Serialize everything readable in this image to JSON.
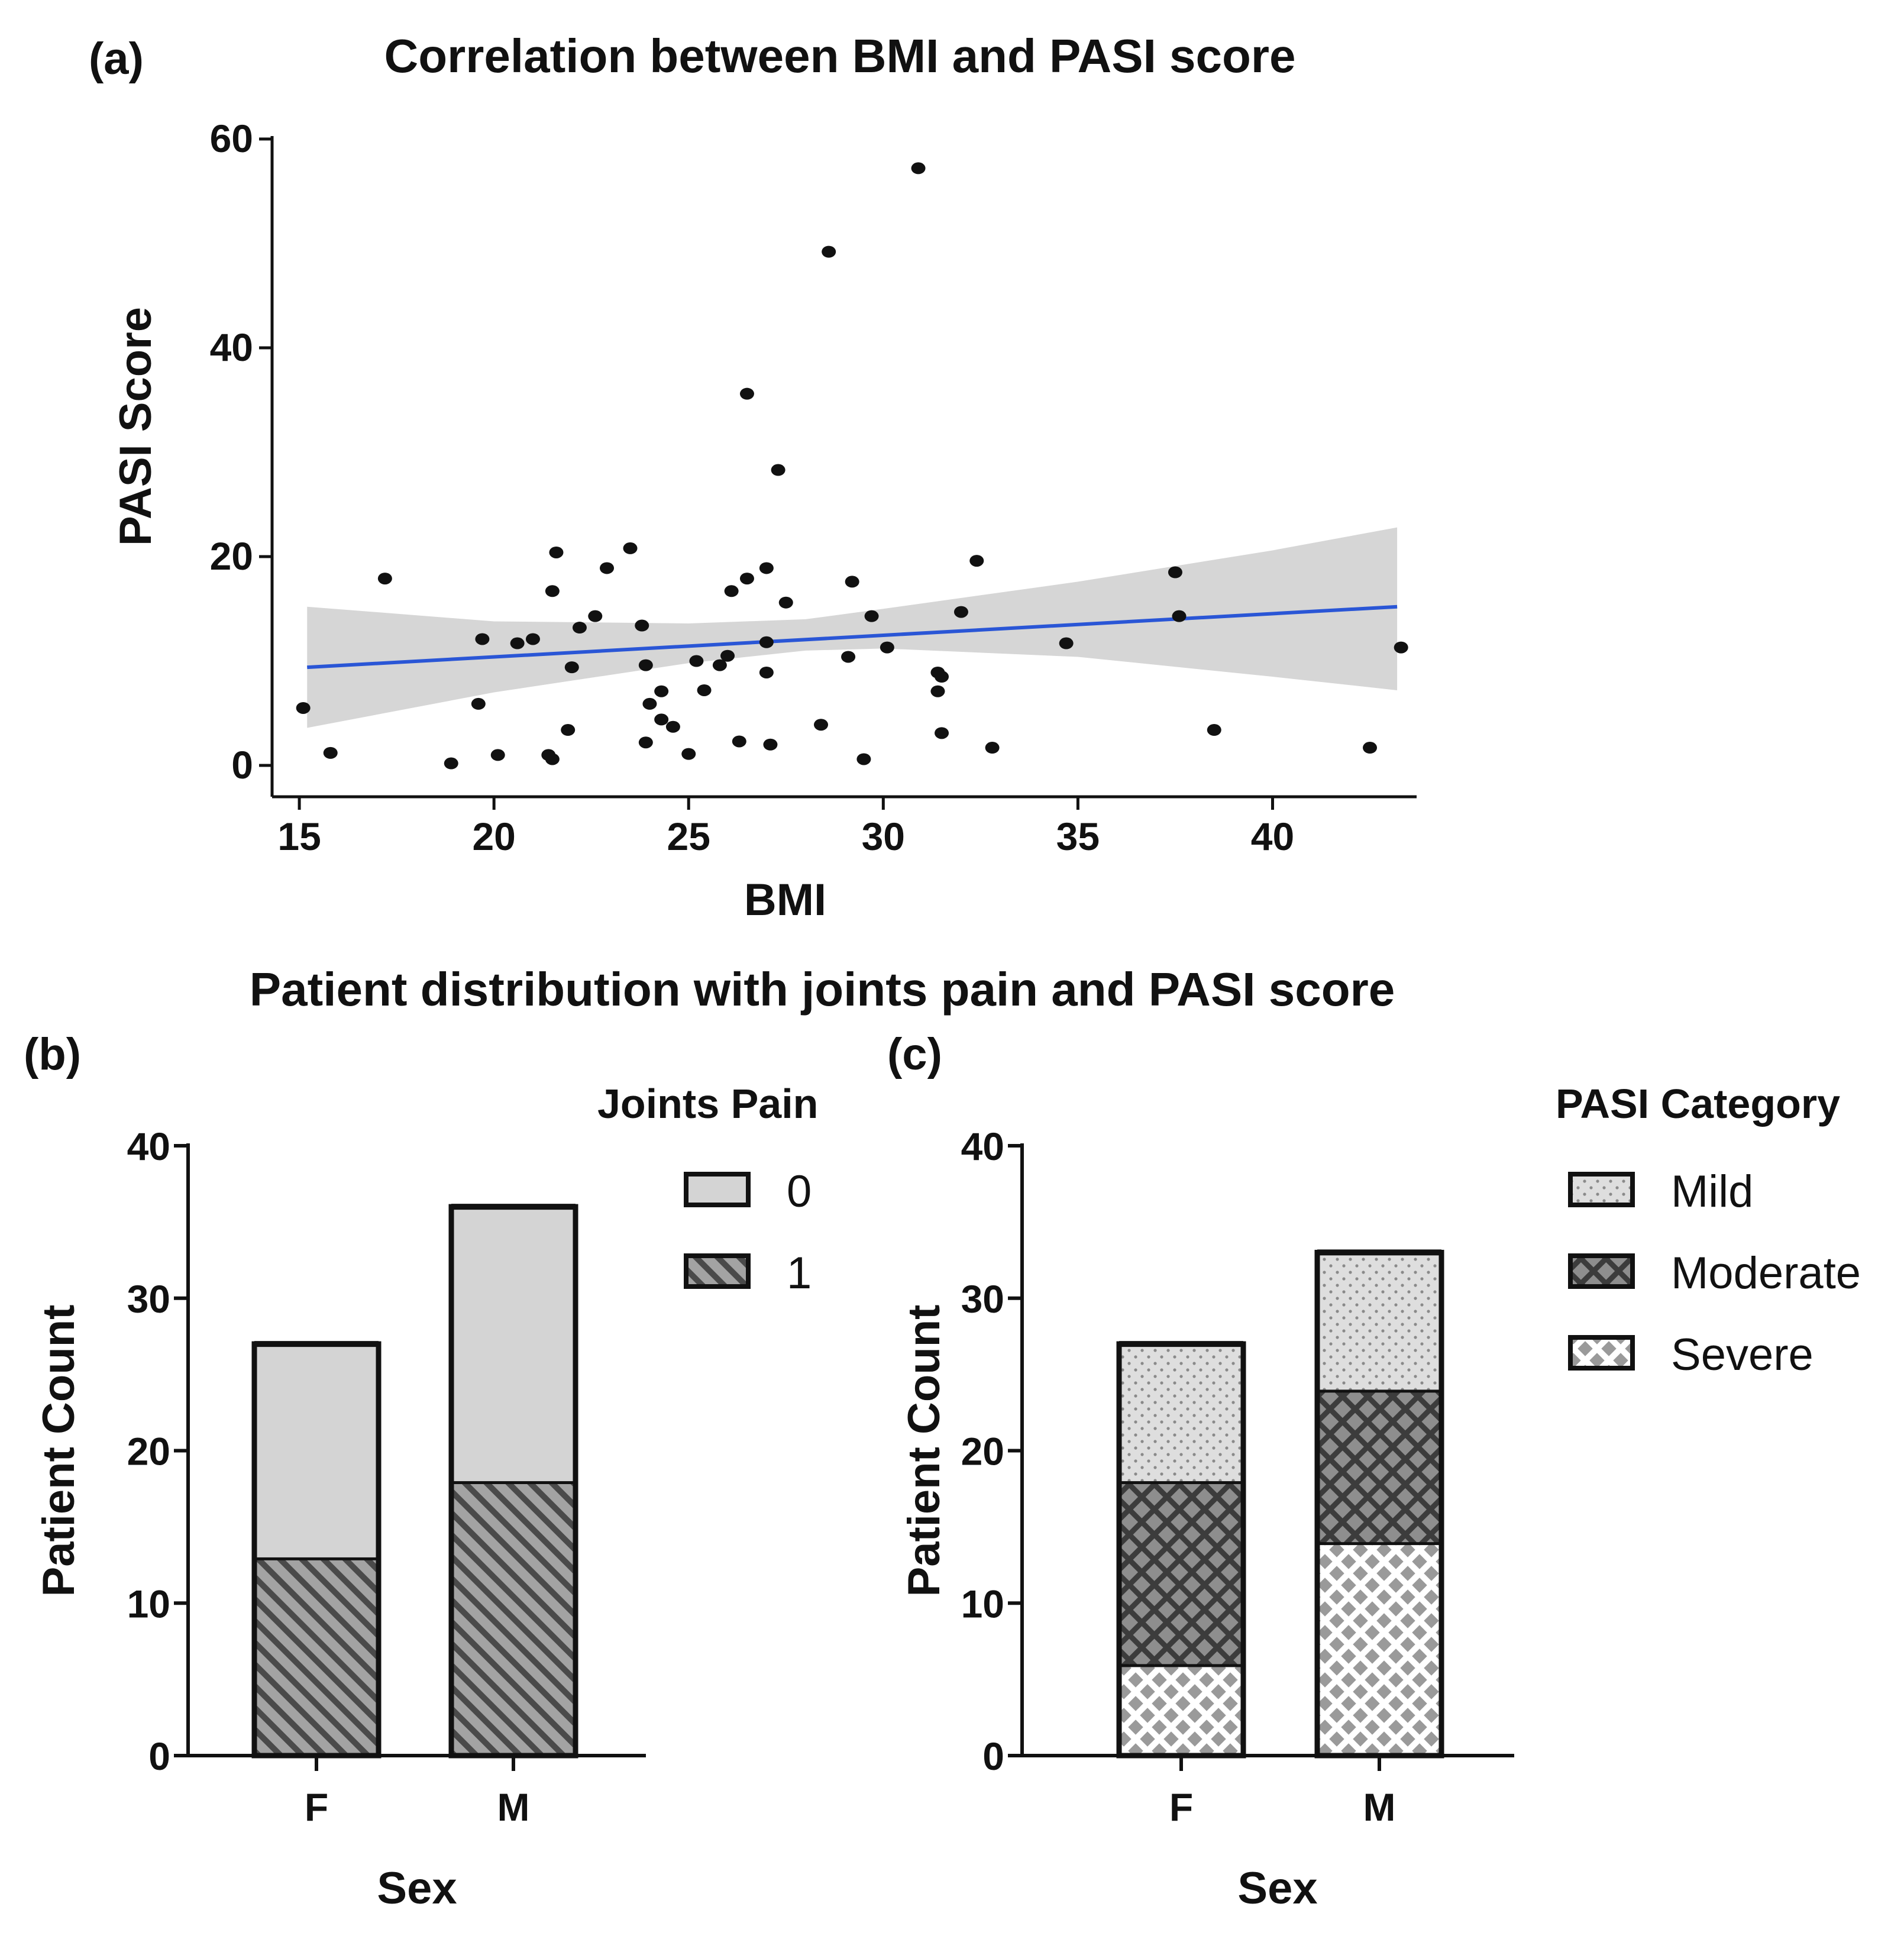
{
  "chart_data": [
    {
      "panel": "(a)",
      "type": "scatter",
      "title": "Correlation between BMI and PASI score",
      "xlabel": "BMI",
      "ylabel": "PASI Score",
      "xlim": [
        14.3,
        43.7
      ],
      "ylim": [
        -3,
        60
      ],
      "xticks": [
        15,
        20,
        25,
        30,
        35,
        40
      ],
      "yticks": [
        0,
        20,
        40,
        60
      ],
      "grid": false,
      "colors": {
        "points": "#111111",
        "fit_line": "#2a56d6",
        "confidence_band": "#d6d6d6"
      },
      "fit_line": {
        "x": [
          15.2,
          43.2
        ],
        "y": [
          9.4,
          15.2
        ]
      },
      "confidence_band": {
        "x": [
          15.2,
          20,
          25,
          28,
          30,
          35,
          40,
          43.2
        ],
        "upper": [
          15.2,
          13.8,
          13.6,
          14.0,
          15.0,
          17.6,
          20.6,
          22.8
        ],
        "lower": [
          3.6,
          7.0,
          9.8,
          11.0,
          11.2,
          10.4,
          8.5,
          7.2
        ]
      },
      "points": [
        {
          "x": 15.1,
          "y": 5.5
        },
        {
          "x": 15.8,
          "y": 1.2
        },
        {
          "x": 17.2,
          "y": 17.9
        },
        {
          "x": 18.9,
          "y": 0.2
        },
        {
          "x": 19.6,
          "y": 5.9
        },
        {
          "x": 19.7,
          "y": 12.1
        },
        {
          "x": 20.1,
          "y": 1.0
        },
        {
          "x": 20.6,
          "y": 11.7
        },
        {
          "x": 21.0,
          "y": 12.1
        },
        {
          "x": 21.4,
          "y": 1.0
        },
        {
          "x": 21.5,
          "y": 0.6
        },
        {
          "x": 21.5,
          "y": 16.7
        },
        {
          "x": 21.6,
          "y": 20.4
        },
        {
          "x": 21.9,
          "y": 3.4
        },
        {
          "x": 22.0,
          "y": 9.4
        },
        {
          "x": 22.2,
          "y": 13.2
        },
        {
          "x": 22.6,
          "y": 14.3
        },
        {
          "x": 22.9,
          "y": 18.9
        },
        {
          "x": 23.5,
          "y": 20.8
        },
        {
          "x": 23.8,
          "y": 13.4
        },
        {
          "x": 23.9,
          "y": 9.6
        },
        {
          "x": 23.9,
          "y": 2.2
        },
        {
          "x": 24.0,
          "y": 5.9
        },
        {
          "x": 24.3,
          "y": 7.1
        },
        {
          "x": 24.3,
          "y": 4.4
        },
        {
          "x": 24.6,
          "y": 3.7
        },
        {
          "x": 25.0,
          "y": 1.1
        },
        {
          "x": 25.2,
          "y": 10.0
        },
        {
          "x": 25.4,
          "y": 7.2
        },
        {
          "x": 25.8,
          "y": 9.6
        },
        {
          "x": 26.0,
          "y": 10.5
        },
        {
          "x": 26.1,
          "y": 16.7
        },
        {
          "x": 26.3,
          "y": 2.3
        },
        {
          "x": 26.5,
          "y": 35.6
        },
        {
          "x": 26.5,
          "y": 17.9
        },
        {
          "x": 27.0,
          "y": 18.9
        },
        {
          "x": 27.0,
          "y": 11.8
        },
        {
          "x": 27.0,
          "y": 8.9
        },
        {
          "x": 27.1,
          "y": 2.0
        },
        {
          "x": 27.3,
          "y": 28.3
        },
        {
          "x": 27.5,
          "y": 15.6
        },
        {
          "x": 28.4,
          "y": 3.9
        },
        {
          "x": 28.6,
          "y": 49.2
        },
        {
          "x": 29.1,
          "y": 10.4
        },
        {
          "x": 29.2,
          "y": 17.6
        },
        {
          "x": 29.5,
          "y": 0.6
        },
        {
          "x": 29.7,
          "y": 14.3
        },
        {
          "x": 30.1,
          "y": 11.3
        },
        {
          "x": 30.9,
          "y": 57.2
        },
        {
          "x": 31.4,
          "y": 7.1
        },
        {
          "x": 31.4,
          "y": 8.9
        },
        {
          "x": 31.5,
          "y": 8.5
        },
        {
          "x": 31.5,
          "y": 3.1
        },
        {
          "x": 32.0,
          "y": 14.7
        },
        {
          "x": 32.4,
          "y": 19.6
        },
        {
          "x": 32.8,
          "y": 1.7
        },
        {
          "x": 34.7,
          "y": 11.7
        },
        {
          "x": 37.5,
          "y": 18.5
        },
        {
          "x": 37.6,
          "y": 14.3
        },
        {
          "x": 38.5,
          "y": 3.4
        },
        {
          "x": 42.5,
          "y": 1.7
        },
        {
          "x": 43.3,
          "y": 11.3
        }
      ]
    },
    {
      "panel": "(b)",
      "type": "bar",
      "stacked": true,
      "xlabel": "Sex",
      "ylabel": "Patient Count",
      "ylim": [
        0,
        40
      ],
      "yticks": [
        0,
        10,
        20,
        30,
        40
      ],
      "legend_title": "Joints Pain",
      "legend_position": "top-right",
      "categories": [
        "F",
        "M"
      ],
      "series": [
        {
          "name": "1",
          "values": [
            13,
            18
          ],
          "pattern": "diagonal-hatch",
          "color": "#8c8c8c"
        },
        {
          "name": "0",
          "values": [
            14,
            18
          ],
          "pattern": "solid",
          "color": "#d4d4d4"
        }
      ],
      "legend_order": [
        "0",
        "1"
      ]
    },
    {
      "panel": "(c)",
      "type": "bar",
      "stacked": true,
      "xlabel": "Sex",
      "ylabel": "Patient Count",
      "ylim": [
        0,
        40
      ],
      "yticks": [
        0,
        10,
        20,
        30,
        40
      ],
      "legend_title": "PASI Category",
      "legend_position": "top-right",
      "categories": [
        "F",
        "M"
      ],
      "series": [
        {
          "name": "Severe",
          "values": [
            6,
            14
          ],
          "pattern": "diamond-dots",
          "color": "#ffffff"
        },
        {
          "name": "Moderate",
          "values": [
            12,
            10
          ],
          "pattern": "crosshatch",
          "color": "#8a8a8a"
        },
        {
          "name": "Mild",
          "values": [
            9,
            9
          ],
          "pattern": "dotted",
          "color": "#d9d9d9"
        }
      ],
      "legend_order": [
        "Mild",
        "Moderate",
        "Severe"
      ]
    }
  ],
  "figure": {
    "subtitle": "Patient distribution with joints pain and PASI score"
  }
}
